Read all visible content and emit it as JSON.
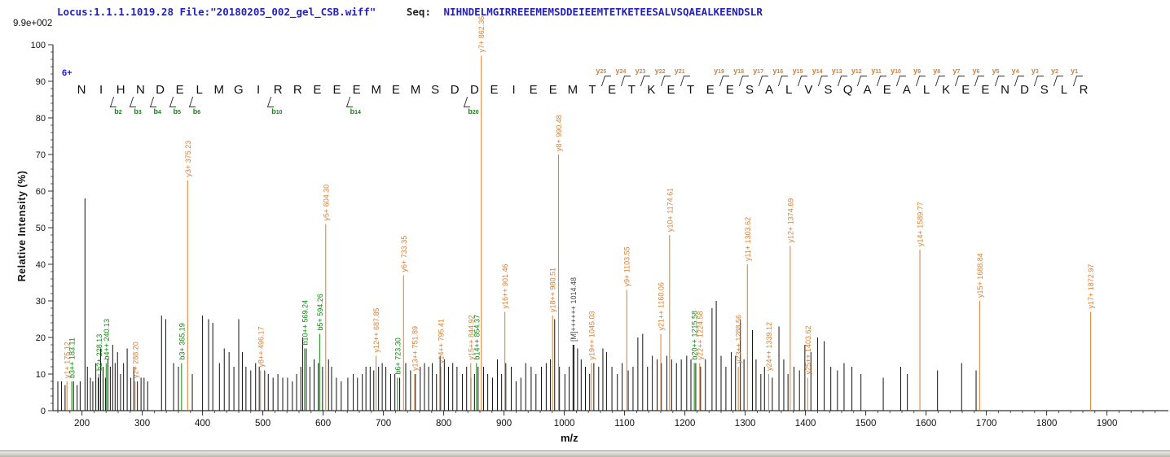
{
  "header": {
    "locus_line": "Locus:1.1.1.1019.28 File:\"20180205_002_gel_CSB.wiff\"",
    "seq_label": "Seq:",
    "max_intensity": "9.9e+002"
  },
  "chart_data": {
    "type": "bar",
    "subtype": "msms-peptide-fragmentation-spectrum",
    "title": "",
    "xlabel": "m/z",
    "ylabel": "Relative  Intensity (%)",
    "xlim": [
      152,
      2000
    ],
    "ylim": [
      0,
      100
    ],
    "grid": false,
    "x_major_ticks": [
      200,
      300,
      400,
      500,
      600,
      700,
      800,
      900,
      1000,
      1100,
      1200,
      1300,
      1400,
      1500,
      1600,
      1700,
      1800,
      1900
    ],
    "x_minor_step": 20,
    "y_major_ticks": [
      0,
      10,
      20,
      30,
      40,
      50,
      60,
      70,
      80,
      90,
      100
    ],
    "y_minor_step": 2,
    "precursor_charge_label": "6+",
    "peptide": {
      "sequence": "NIHNDELMGIRREEEMEMSDDEIEEMTETKETEESALVSQAEALKEENDSLR",
      "b_ion_positions": [
        2,
        3,
        4,
        5,
        6,
        10,
        14,
        20
      ],
      "y_ion_positions": [
        25,
        24,
        23,
        22,
        21,
        19,
        18,
        17,
        16,
        15,
        14,
        13,
        12,
        11,
        10,
        9,
        8,
        7,
        6,
        5,
        4,
        3,
        2,
        1
      ]
    },
    "labeled_peaks": [
      {
        "mz": 175.12,
        "intensity": 8,
        "label": "y1+ 175.12",
        "ion": "y"
      },
      {
        "mz": 183.11,
        "intensity": 8,
        "label": "b3++ 183.11",
        "ion": "b"
      },
      {
        "mz": 228.13,
        "intensity": 10,
        "label": "b2+ 228.13",
        "ion": "b"
      },
      {
        "mz": 240.13,
        "intensity": 13,
        "label": "b4++ 240.13",
        "ion": "b"
      },
      {
        "mz": 288.2,
        "intensity": 8,
        "label": "y2+ 288.20",
        "ion": "y"
      },
      {
        "mz": 365.19,
        "intensity": 13,
        "label": "b3+ 365.19",
        "ion": "b"
      },
      {
        "mz": 375.23,
        "intensity": 63,
        "label": "y3+ 375.23",
        "ion": "y"
      },
      {
        "mz": 496.17,
        "intensity": 11,
        "label": "y8++ 496.17",
        "ion": "y"
      },
      {
        "mz": 569.24,
        "intensity": 17,
        "label": "b10++ 569.24",
        "ion": "b"
      },
      {
        "mz": 594.26,
        "intensity": 21,
        "label": "b5+ 594.26",
        "ion": "b"
      },
      {
        "mz": 604.3,
        "intensity": 51,
        "label": "y5+ 604.30",
        "ion": "y"
      },
      {
        "mz": 687.85,
        "intensity": 15,
        "label": "y12++ 687.85",
        "ion": "y"
      },
      {
        "mz": 723.3,
        "intensity": 9,
        "label": "b6+ 723.30",
        "ion": "b"
      },
      {
        "mz": 733.35,
        "intensity": 37,
        "label": "y6+ 733.35",
        "ion": "y"
      },
      {
        "mz": 751.89,
        "intensity": 10,
        "label": "y13++ 751.89",
        "ion": "y"
      },
      {
        "mz": 795.41,
        "intensity": 12,
        "label": "y14++ 795.41",
        "ion": "y"
      },
      {
        "mz": 844.92,
        "intensity": 13,
        "label": "y15++ 844.92",
        "ion": "y"
      },
      {
        "mz": 854.37,
        "intensity": 13,
        "label": "b14++ 854.37",
        "ion": "b"
      },
      {
        "mz": 862.36,
        "intensity": 97,
        "label": "y7+ 862.36",
        "ion": "y"
      },
      {
        "mz": 901.46,
        "intensity": 27,
        "label": "y16++ 901.46",
        "ion": "y"
      },
      {
        "mz": 980.51,
        "intensity": 26,
        "label": "y18++ 980.51",
        "ion": "y"
      },
      {
        "mz": 990.48,
        "intensity": 70,
        "label": "y8+ 990.48",
        "ion": "y"
      },
      {
        "mz": 1014.48,
        "intensity": 18,
        "label": "[M]++++++ 1014.48",
        "ion": "M"
      },
      {
        "mz": 1045.03,
        "intensity": 13,
        "label": "y19++ 1045.03",
        "ion": "y"
      },
      {
        "mz": 1103.55,
        "intensity": 33,
        "label": "y9+ 1103.55",
        "ion": "y"
      },
      {
        "mz": 1160.06,
        "intensity": 21,
        "label": "y21++ 1160.06",
        "ion": "y"
      },
      {
        "mz": 1174.61,
        "intensity": 48,
        "label": "y10+ 1174.61",
        "ion": "y"
      },
      {
        "mz": 1215.58,
        "intensity": 13,
        "label": "b20++ 1215.58",
        "ion": "b"
      },
      {
        "mz": 1224.58,
        "intensity": 13,
        "label": "y22++ 1224.58",
        "ion": "y"
      },
      {
        "mz": 1288.56,
        "intensity": 12,
        "label": "y23++ 1288.56",
        "ion": "y"
      },
      {
        "mz": 1303.62,
        "intensity": 40,
        "label": "y11+ 1303.62",
        "ion": "y"
      },
      {
        "mz": 1339.12,
        "intensity": 10,
        "label": "y24++ 1339.12",
        "ion": "y"
      },
      {
        "mz": 1374.69,
        "intensity": 45,
        "label": "y12+ 1374.69",
        "ion": "y"
      },
      {
        "mz": 1403.62,
        "intensity": 9,
        "label": "y25++ 1403.62",
        "ion": "y"
      },
      {
        "mz": 1589.77,
        "intensity": 44,
        "label": "y14+ 1589.77",
        "ion": "y"
      },
      {
        "mz": 1688.84,
        "intensity": 30,
        "label": "y15+ 1688.84",
        "ion": "y"
      },
      {
        "mz": 1872.97,
        "intensity": 27,
        "label": "y17+ 1872.97",
        "ion": "y"
      }
    ],
    "unlabeled_peaks": [
      [
        160,
        8
      ],
      [
        166,
        8
      ],
      [
        172,
        7
      ],
      [
        186,
        8
      ],
      [
        192,
        7
      ],
      [
        197,
        8
      ],
      [
        205,
        58
      ],
      [
        209,
        12
      ],
      [
        214,
        9
      ],
      [
        218,
        8
      ],
      [
        223,
        13
      ],
      [
        227,
        9
      ],
      [
        231,
        17
      ],
      [
        235,
        12
      ],
      [
        239,
        9
      ],
      [
        243,
        14
      ],
      [
        247,
        12
      ],
      [
        251,
        18
      ],
      [
        255,
        13
      ],
      [
        259,
        16
      ],
      [
        264,
        10
      ],
      [
        269,
        13
      ],
      [
        275,
        17
      ],
      [
        281,
        9
      ],
      [
        286,
        12
      ],
      [
        292,
        8
      ],
      [
        298,
        9
      ],
      [
        303,
        9
      ],
      [
        309,
        8
      ],
      [
        332,
        26
      ],
      [
        339,
        25
      ],
      [
        352,
        13
      ],
      [
        360,
        12
      ],
      [
        383,
        10
      ],
      [
        400,
        26
      ],
      [
        410,
        25
      ],
      [
        417,
        24
      ],
      [
        428,
        13
      ],
      [
        436,
        17
      ],
      [
        444,
        16
      ],
      [
        452,
        12
      ],
      [
        460,
        25
      ],
      [
        466,
        16
      ],
      [
        472,
        12
      ],
      [
        480,
        11
      ],
      [
        488,
        13
      ],
      [
        494,
        12
      ],
      [
        503,
        11
      ],
      [
        509,
        10
      ],
      [
        517,
        9
      ],
      [
        525,
        10
      ],
      [
        533,
        9
      ],
      [
        541,
        9
      ],
      [
        549,
        8
      ],
      [
        556,
        10
      ],
      [
        563,
        12
      ],
      [
        566,
        20
      ],
      [
        572,
        17
      ],
      [
        578,
        12
      ],
      [
        585,
        14
      ],
      [
        592,
        13
      ],
      [
        599,
        12
      ],
      [
        609,
        14
      ],
      [
        614,
        12
      ],
      [
        622,
        9
      ],
      [
        630,
        8
      ],
      [
        641,
        9
      ],
      [
        650,
        10
      ],
      [
        657,
        9
      ],
      [
        665,
        10
      ],
      [
        671,
        12
      ],
      [
        678,
        12
      ],
      [
        684,
        11
      ],
      [
        692,
        12
      ],
      [
        698,
        13
      ],
      [
        704,
        12
      ],
      [
        712,
        10
      ],
      [
        719,
        10
      ],
      [
        727,
        9
      ],
      [
        737,
        13
      ],
      [
        745,
        11
      ],
      [
        753,
        10
      ],
      [
        761,
        12
      ],
      [
        768,
        13
      ],
      [
        775,
        12
      ],
      [
        781,
        13
      ],
      [
        788,
        10
      ],
      [
        794,
        15
      ],
      [
        801,
        14
      ],
      [
        808,
        12
      ],
      [
        815,
        13
      ],
      [
        822,
        12
      ],
      [
        831,
        10
      ],
      [
        838,
        12
      ],
      [
        845,
        9
      ],
      [
        851,
        10
      ],
      [
        857,
        12
      ],
      [
        866,
        12
      ],
      [
        873,
        10
      ],
      [
        881,
        9
      ],
      [
        889,
        14
      ],
      [
        896,
        10
      ],
      [
        903,
        13
      ],
      [
        912,
        12
      ],
      [
        920,
        8
      ],
      [
        928,
        9
      ],
      [
        936,
        13
      ],
      [
        945,
        12
      ],
      [
        953,
        10
      ],
      [
        962,
        12
      ],
      [
        970,
        13
      ],
      [
        977,
        14
      ],
      [
        984,
        25
      ],
      [
        992,
        12
      ],
      [
        1001,
        10
      ],
      [
        1008,
        12
      ],
      [
        1016,
        18
      ],
      [
        1022,
        17
      ],
      [
        1028,
        14
      ],
      [
        1035,
        12
      ],
      [
        1042,
        10
      ],
      [
        1049,
        13
      ],
      [
        1057,
        12
      ],
      [
        1064,
        17
      ],
      [
        1070,
        16
      ],
      [
        1079,
        12
      ],
      [
        1088,
        10
      ],
      [
        1096,
        13
      ],
      [
        1106,
        11
      ],
      [
        1114,
        12
      ],
      [
        1122,
        20
      ],
      [
        1130,
        21
      ],
      [
        1138,
        12
      ],
      [
        1146,
        15
      ],
      [
        1154,
        14
      ],
      [
        1161,
        13
      ],
      [
        1170,
        15
      ],
      [
        1178,
        14
      ],
      [
        1186,
        13
      ],
      [
        1194,
        14
      ],
      [
        1203,
        15
      ],
      [
        1210,
        14
      ],
      [
        1218,
        13
      ],
      [
        1226,
        12
      ],
      [
        1234,
        14
      ],
      [
        1245,
        28
      ],
      [
        1252,
        30
      ],
      [
        1260,
        15
      ],
      [
        1268,
        12
      ],
      [
        1277,
        16
      ],
      [
        1284,
        15
      ],
      [
        1292,
        25
      ],
      [
        1298,
        14
      ],
      [
        1312,
        22
      ],
      [
        1318,
        14
      ],
      [
        1326,
        10
      ],
      [
        1332,
        12
      ],
      [
        1345,
        9
      ],
      [
        1356,
        23
      ],
      [
        1364,
        14
      ],
      [
        1371,
        10
      ],
      [
        1381,
        12
      ],
      [
        1390,
        11
      ],
      [
        1399,
        18
      ],
      [
        1409,
        16
      ],
      [
        1420,
        20
      ],
      [
        1431,
        19
      ],
      [
        1442,
        12
      ],
      [
        1453,
        11
      ],
      [
        1464,
        13
      ],
      [
        1477,
        12
      ],
      [
        1492,
        10
      ],
      [
        1529,
        9
      ],
      [
        1558,
        12
      ],
      [
        1569,
        10
      ],
      [
        1619,
        11
      ],
      [
        1659,
        13
      ],
      [
        1683,
        11
      ]
    ]
  },
  "colors": {
    "y_ion": "#dd7e2f",
    "b_ion": "#0c8a0c",
    "precursor": "#555555",
    "peak_default": "#111111",
    "header_blue": "#2222bb",
    "axis": "#333333"
  }
}
